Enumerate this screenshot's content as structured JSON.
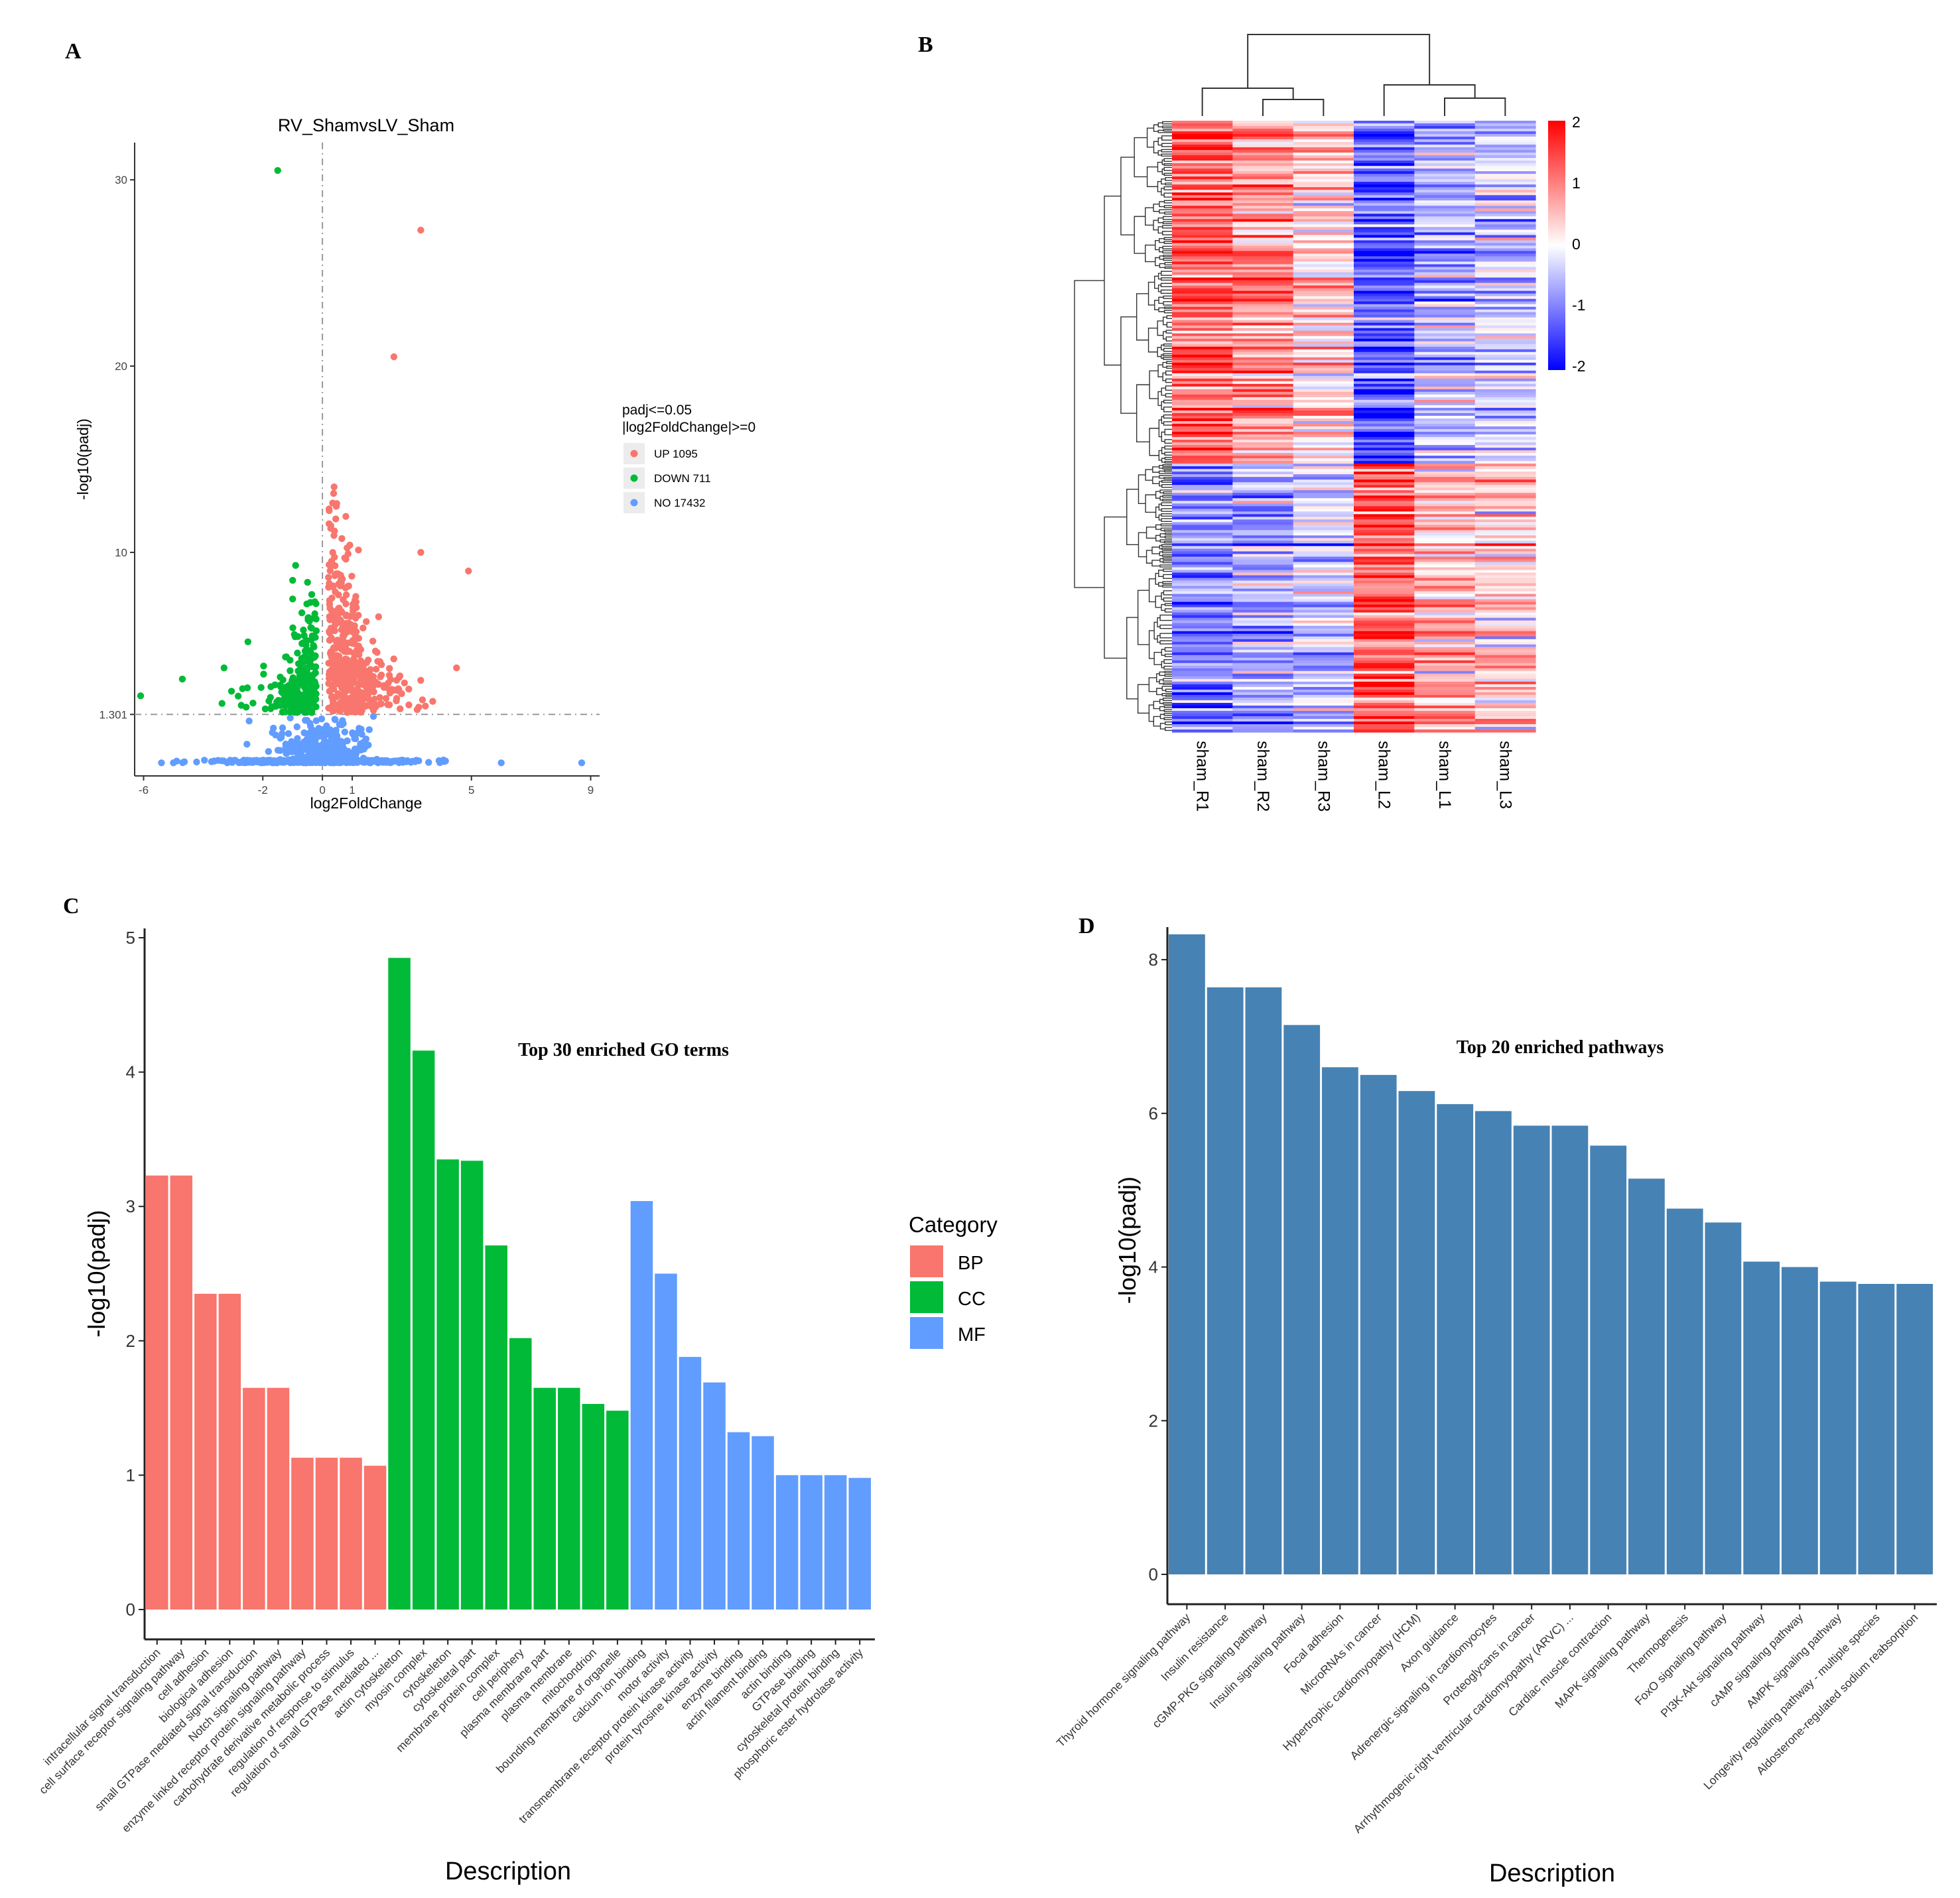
{
  "panels": {
    "A": {
      "letter": "A",
      "chart_data": {
        "type": "scatter",
        "title": "RV_ShamvsLV_Sham",
        "xlabel": "log2FoldChange",
        "ylabel": "-log10(padj)",
        "xlim": [
          -6.3,
          9.3
        ],
        "ylim": [
          -2.0,
          32.0
        ],
        "xticks": [
          -6,
          -2,
          0,
          1,
          5,
          9
        ],
        "xtick_labels": [
          "-6",
          "-2",
          "0",
          "1",
          "5",
          "9"
        ],
        "yticks": [
          1.301,
          10,
          20,
          30
        ],
        "ytick_labels": [
          "1.301",
          "10",
          "20",
          "30"
        ],
        "threshold_y": 1.301,
        "threshold_x": 0,
        "legend": {
          "title_line1": "padj<=0.05",
          "title_line2": "|log2FoldChange|>=0",
          "position": "right",
          "entries": [
            {
              "label": "UP 1095",
              "color": "#f8766d"
            },
            {
              "label": "DOWN 711",
              "color": "#00ba38"
            },
            {
              "label": "NO 17432",
              "color": "#619cff"
            }
          ]
        },
        "highlight_points": {
          "down": [
            [
              -1.5,
              30.5
            ],
            [
              -6.1,
              2.3
            ],
            [
              -4.7,
              3.2
            ],
            [
              -3.3,
              3.8
            ],
            [
              -2.5,
              5.2
            ],
            [
              -1.0,
              8.5
            ],
            [
              -1.0,
              7.5
            ],
            [
              -0.9,
              9.3
            ]
          ],
          "up": [
            [
              3.3,
              27.3
            ],
            [
              2.4,
              20.5
            ],
            [
              3.3,
              10.0
            ],
            [
              4.9,
              9.0
            ],
            [
              4.5,
              3.8
            ],
            [
              3.7,
              2.0
            ]
          ],
          "no": [
            [
              8.7,
              -1.3
            ],
            [
              6.0,
              -1.3
            ],
            [
              -5.4,
              -1.3
            ],
            [
              -5.0,
              -1.3
            ]
          ]
        }
      }
    },
    "B": {
      "letter": "B",
      "chart_data": {
        "type": "heatmap",
        "columns": [
          "sham_R1",
          "sham_R2",
          "sham_R3",
          "sham_L2",
          "sham_L1",
          "sham_L3"
        ],
        "scale_range": [
          -2,
          2
        ],
        "scale_ticks": [
          "2",
          "1",
          "0",
          "-1",
          "-2"
        ],
        "colors": {
          "low": "#0000ff",
          "mid": "#ffffff",
          "high": "#ff0000"
        },
        "row_clusters": [
          {
            "name": "upper",
            "fraction": 0.56,
            "column_means": [
              1.3,
              0.9,
              0.45,
              -1.35,
              -0.6,
              -0.45
            ]
          },
          {
            "name": "lower",
            "fraction": 0.44,
            "column_means": [
              -1.0,
              -0.75,
              -0.35,
              1.3,
              0.55,
              0.35
            ]
          }
        ]
      }
    },
    "C": {
      "letter": "C",
      "chart_data": {
        "type": "bar",
        "title": "Top 30 enriched GO terms",
        "xlabel": "Description",
        "ylabel": "-log10(padj)",
        "ylim": [
          0,
          5
        ],
        "yticks": [
          "0",
          "1",
          "2",
          "3",
          "4",
          "5"
        ],
        "legend": {
          "title": "Category",
          "position": "right",
          "entries": [
            {
              "label": "BP",
              "color": "#f8766d"
            },
            {
              "label": "CC",
              "color": "#00ba38"
            },
            {
              "label": "MF",
              "color": "#619cff"
            }
          ]
        },
        "categories": [
          "intracellular signal transduction",
          "cell surface receptor signaling pathway",
          "cell adhesion",
          "biological adhesion",
          "small GTPase mediated signal transduction",
          "Notch signaling pathway",
          "enzyme linked receptor protein signaling pathway",
          "carbohydrate derivative metabolic process",
          "regulation of response to stimulus",
          "regulation of small GTPase mediated ...",
          "actin cytoskeleton",
          "myosin complex",
          "cytoskeleton",
          "cytoskeletal part",
          "membrane protein complex",
          "cell periphery",
          "plasma membrane part",
          "plasma membrane",
          "mitochondrion",
          "bounding membrane of organelle",
          "calcium ion binding",
          "motor activity",
          "transmembrane receptor protein kinase activity",
          "protein tyrosine kinase activity",
          "enzyme binding",
          "actin filament binding",
          "actin binding",
          "GTPase binding",
          "cytoskeletal protein binding",
          "phosphoric ester hydrolase activity"
        ],
        "groups": [
          "BP",
          "BP",
          "BP",
          "BP",
          "BP",
          "BP",
          "BP",
          "BP",
          "BP",
          "BP",
          "CC",
          "CC",
          "CC",
          "CC",
          "CC",
          "CC",
          "CC",
          "CC",
          "CC",
          "CC",
          "MF",
          "MF",
          "MF",
          "MF",
          "MF",
          "MF",
          "MF",
          "MF",
          "MF",
          "MF"
        ],
        "values": [
          3.23,
          3.23,
          2.35,
          2.35,
          1.65,
          1.65,
          1.13,
          1.13,
          1.13,
          1.07,
          4.85,
          4.16,
          3.35,
          3.34,
          2.71,
          2.02,
          1.65,
          1.65,
          1.53,
          1.48,
          3.04,
          2.5,
          1.88,
          1.69,
          1.32,
          1.29,
          1.0,
          1.0,
          1.0,
          0.98
        ]
      }
    },
    "D": {
      "letter": "D",
      "chart_data": {
        "type": "bar",
        "title": "Top 20 enriched pathways",
        "xlabel": "Description",
        "ylabel": "-log10(padj)",
        "ylim": [
          0,
          8.7
        ],
        "yticks": [
          "0",
          "2",
          "4",
          "6",
          "8"
        ],
        "bar_color": "#4682b4",
        "categories": [
          "Thyroid hormone signaling pathway",
          "Insulin resistance",
          "cGMP-PKG signaling pathway",
          "Insulin signaling pathway",
          "Focal adhesion",
          "MicroRNAs in cancer",
          "Hypertrophic cardiomyopathy (HCM)",
          "Axon guidance",
          "Adrenergic signaling in cardiomyocytes",
          "Proteoglycans in cancer",
          "Arrhythmogenic right ventricular cardiomyopathy (ARVC) ...",
          "Cardiac muscle contraction",
          "MAPK signaling pathway",
          "Thermogenesis",
          "FoxO signaling pathway",
          "PI3K-Akt signaling pathway",
          "cAMP signaling pathway",
          "AMPK signaling pathway",
          "Longevity regulating pathway - multiple species",
          "Aldosterone-regulated sodium reabsorption"
        ],
        "values": [
          8.33,
          7.64,
          7.64,
          7.15,
          6.6,
          6.5,
          6.29,
          6.12,
          6.03,
          5.84,
          5.84,
          5.58,
          5.15,
          4.76,
          4.58,
          4.07,
          4.0,
          3.81,
          3.78,
          3.78
        ]
      }
    }
  }
}
